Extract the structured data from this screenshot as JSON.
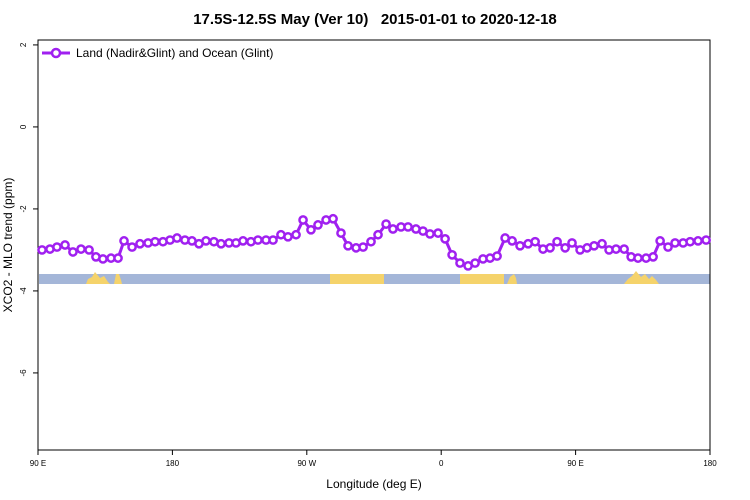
{
  "chart_data": {
    "type": "line",
    "title": "17.5S-12.5S May (Ver 10)   2015-01-01 to 2020-12-18",
    "xlabel": "Longitude (deg E)",
    "ylabel": "XCO2 - MLO trend (ppm)",
    "xlim": [
      90,
      540
    ],
    "ylim": [
      -7.88,
      2.12
    ],
    "xticks": [
      {
        "value": 90,
        "label": "90 E"
      },
      {
        "value": 180,
        "label": "180"
      },
      {
        "value": 270,
        "label": "90 W"
      },
      {
        "value": 360,
        "label": "0"
      },
      {
        "value": 450,
        "label": "90 E"
      },
      {
        "value": 540,
        "label": "180"
      }
    ],
    "yticks": [
      2,
      0,
      -2,
      -4,
      -6
    ],
    "legend": "upper left",
    "x": [
      92.7,
      98.0,
      102.7,
      108.1,
      113.4,
      118.8,
      124.2,
      128.8,
      133.5,
      138.9,
      143.6,
      147.6,
      153.0,
      158.3,
      163.7,
      168.4,
      173.7,
      178.4,
      183.1,
      188.4,
      193.1,
      197.8,
      202.5,
      207.8,
      212.6,
      217.9,
      222.6,
      227.3,
      232.6,
      237.3,
      242.7,
      247.4,
      252.7,
      257.4,
      262.8,
      267.5,
      272.8,
      277.5,
      282.9,
      287.6,
      292.9,
      297.6,
      303.0,
      307.7,
      313.0,
      317.7,
      323.1,
      327.7,
      333.1,
      337.8,
      343.1,
      347.8,
      352.5,
      357.9,
      362.6,
      367.3,
      372.6,
      378.0,
      382.7,
      388.0,
      392.7,
      397.4,
      402.8,
      407.5,
      412.8,
      418.2,
      422.9,
      428.2,
      432.9,
      437.6,
      443.0,
      447.6,
      453.0,
      457.7,
      462.4,
      467.7,
      472.4,
      477.1,
      482.5,
      487.2,
      491.8,
      497.2,
      501.9,
      506.6,
      511.9,
      516.6,
      522.0,
      526.7,
      532.0,
      537.4
    ],
    "series": [
      {
        "name": "Land (Nadir&Glint) and Ocean (Glint)",
        "color": "#a020f0",
        "values": [
          -3.0,
          -2.98,
          -2.93,
          -2.88,
          -3.05,
          -2.98,
          -3.0,
          -3.17,
          -3.22,
          -3.2,
          -3.2,
          -2.78,
          -2.93,
          -2.85,
          -2.83,
          -2.8,
          -2.8,
          -2.76,
          -2.71,
          -2.76,
          -2.78,
          -2.85,
          -2.78,
          -2.8,
          -2.85,
          -2.83,
          -2.83,
          -2.78,
          -2.8,
          -2.76,
          -2.76,
          -2.76,
          -2.63,
          -2.68,
          -2.63,
          -2.27,
          -2.51,
          -2.39,
          -2.27,
          -2.24,
          -2.59,
          -2.9,
          -2.95,
          -2.93,
          -2.8,
          -2.63,
          -2.37,
          -2.49,
          -2.44,
          -2.44,
          -2.49,
          -2.54,
          -2.61,
          -2.59,
          -2.73,
          -3.12,
          -3.32,
          -3.39,
          -3.32,
          -3.22,
          -3.2,
          -3.15,
          -2.71,
          -2.78,
          -2.9,
          -2.85,
          -2.8,
          -2.98,
          -2.95,
          -2.8,
          -2.95,
          -2.83,
          -3.0,
          -2.95,
          -2.9,
          -2.85,
          -3.0,
          -2.98,
          -2.98,
          -3.17,
          -3.2,
          -3.2,
          -3.17,
          -2.78,
          -2.93,
          -2.83,
          -2.83,
          -2.8,
          -2.78,
          -2.76
        ]
      }
    ]
  }
}
